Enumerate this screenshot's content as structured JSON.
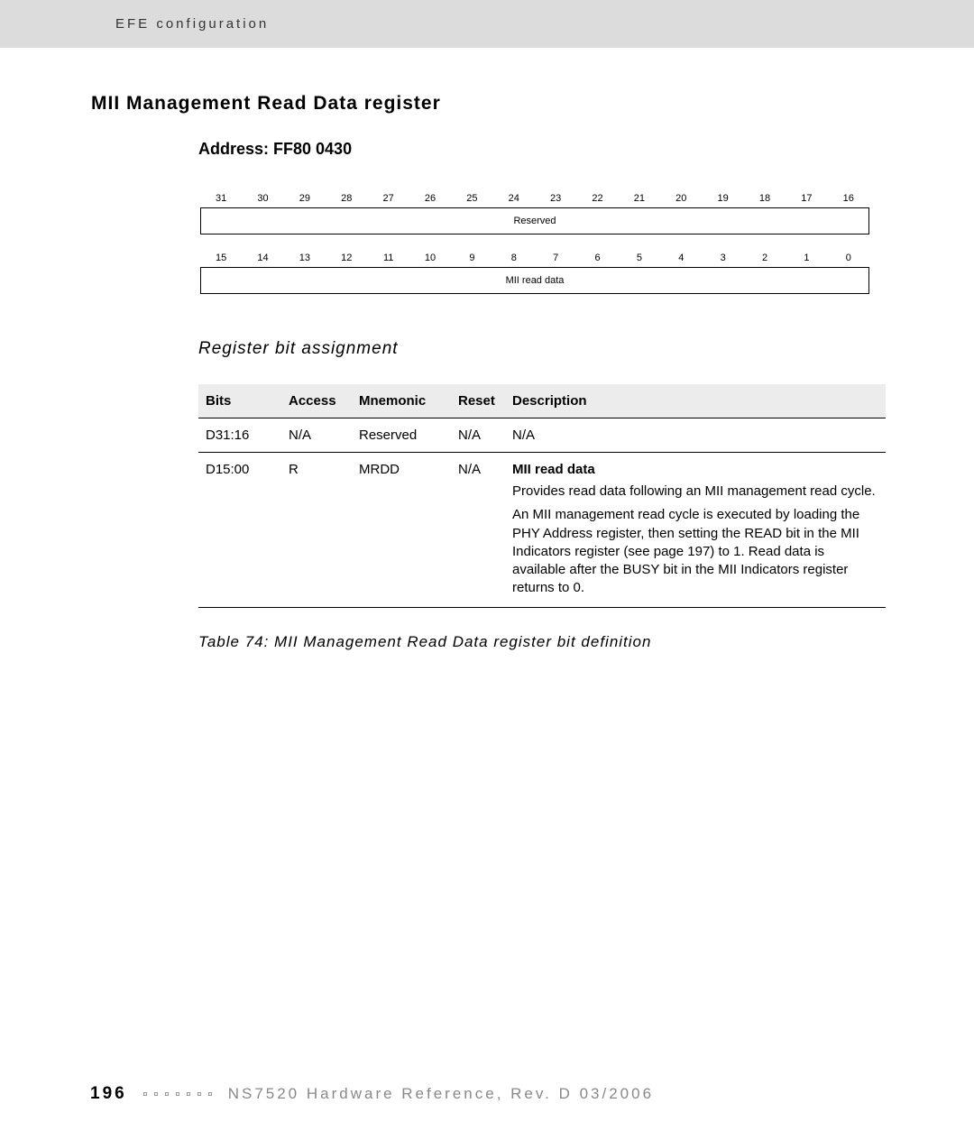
{
  "header": {
    "breadcrumb": "EFE configuration"
  },
  "section": {
    "title": "MII Management Read Data register",
    "address_label": "Address: FF80 0430"
  },
  "bit_diagram": {
    "row1_bits": [
      "31",
      "30",
      "29",
      "28",
      "27",
      "26",
      "25",
      "24",
      "23",
      "22",
      "21",
      "20",
      "19",
      "18",
      "17",
      "16"
    ],
    "row1_label": "Reserved",
    "row2_bits": [
      "15",
      "14",
      "13",
      "12",
      "11",
      "10",
      "9",
      "8",
      "7",
      "6",
      "5",
      "4",
      "3",
      "2",
      "1",
      "0"
    ],
    "row2_label": "MII read data"
  },
  "subsection": {
    "title": "Register bit assignment"
  },
  "table": {
    "headers": {
      "bits": "Bits",
      "access": "Access",
      "mnemonic": "Mnemonic",
      "reset": "Reset",
      "description": "Description"
    },
    "rows": [
      {
        "bits": "D31:16",
        "access": "N/A",
        "mnemonic": "Reserved",
        "reset": "N/A",
        "desc_title": "",
        "desc_p1": "N/A",
        "desc_p2": ""
      },
      {
        "bits": "D15:00",
        "access": "R",
        "mnemonic": "MRDD",
        "reset": "N/A",
        "desc_title": "MII read data",
        "desc_p1": "Provides read data following an MII management read cycle.",
        "desc_p2": "An MII management read cycle is executed by loading the PHY Address register, then setting the READ bit in the MII Indicators register (see page 197) to 1. Read data is available after the BUSY bit in the MII Indicators register returns to 0."
      }
    ],
    "caption": "Table 74: MII Management Read Data register bit definition"
  },
  "footer": {
    "page_number": "196",
    "text": "NS7520 Hardware Reference, Rev. D 03/2006"
  },
  "colors": {
    "header_bg": "#dcdcdc",
    "table_header_bg": "#ececec",
    "footer_text": "#888888",
    "text": "#000000"
  }
}
